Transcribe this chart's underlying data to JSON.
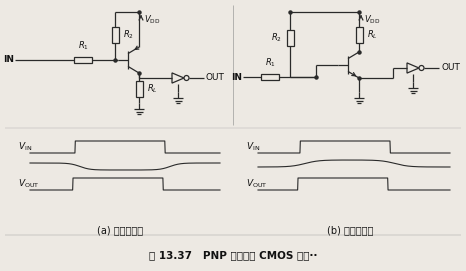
{
  "title": "图 13.37   PNP 晶体管与 CMOS 的接··",
  "label_a": "(a) 发射极接地",
  "label_b": "(b) 射极跟随器",
  "bg_color": "#ede9e3",
  "line_color": "#2a2a2a",
  "text_color": "#111111",
  "VIN_label": "$V_{\\rm IN}$",
  "VOUT_label": "$V_{\\rm OUT}$",
  "VDD_label": "$V_{\\rm DD}$",
  "R1_label": "$R_1$",
  "R2_label": "$R_2$",
  "RL_label": "$R_L$",
  "IN_label": "IN",
  "OUT_label": "OUT"
}
